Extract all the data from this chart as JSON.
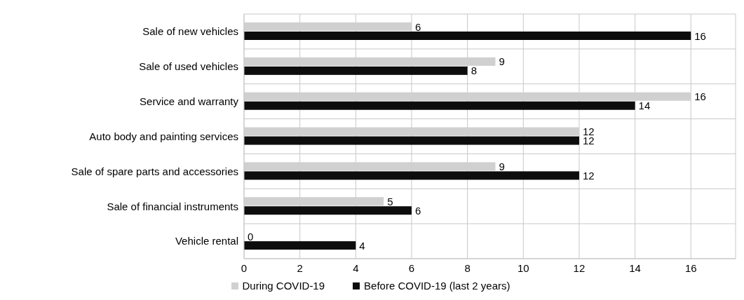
{
  "chart_data": {
    "type": "bar",
    "orientation": "horizontal",
    "categories": [
      "Sale of new vehicles",
      "Sale of used vehicles",
      "Service and warranty",
      "Auto body and painting services",
      "Sale of spare parts and accessories",
      "Sale of financial instruments",
      "Vehicle rental"
    ],
    "series": [
      {
        "name": "During COVID-19",
        "color": "#d0d0d0",
        "values": [
          6,
          9,
          16,
          12,
          9,
          5,
          0
        ]
      },
      {
        "name": "Before COVID-19 (last 2 years)",
        "color": "#0d0d0d",
        "values": [
          16,
          8,
          14,
          12,
          12,
          6,
          4
        ]
      }
    ],
    "xlim": [
      0,
      17.6
    ],
    "xticks": [
      0,
      2,
      4,
      6,
      8,
      10,
      12,
      14,
      16
    ],
    "grid": true,
    "legend": "bottom",
    "data_labels": true
  }
}
